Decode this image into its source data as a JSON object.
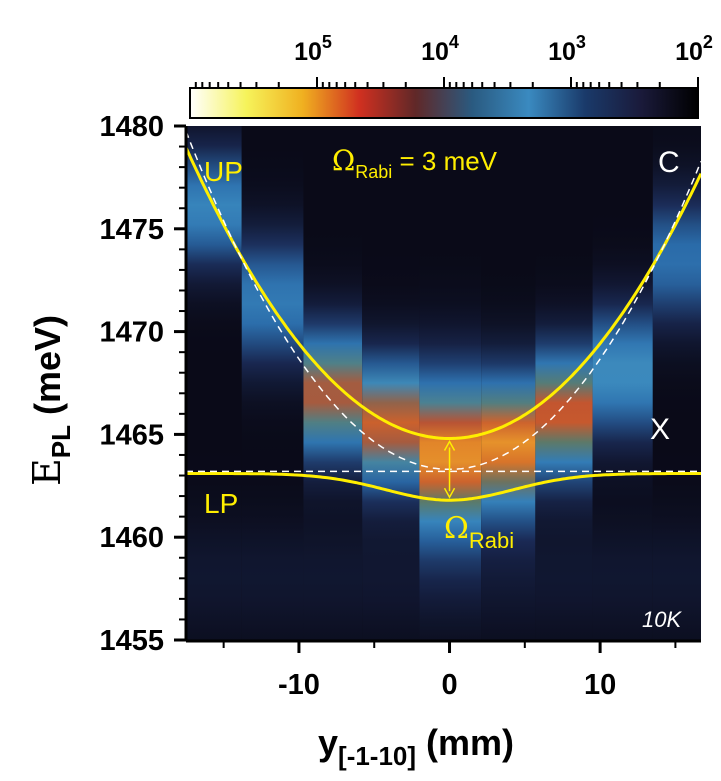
{
  "chart_data": {
    "type": "heatmap",
    "xlabel_main": "y",
    "xlabel_sub": "[-1-10]",
    "xlabel_unit": " (mm)",
    "ylabel_main": "E",
    "ylabel_sub": "PL",
    "ylabel_unit": " (meV)",
    "xlim": [
      -17.5,
      16.7
    ],
    "ylim": [
      1455,
      1480
    ],
    "xticks": [
      -10,
      0,
      10
    ],
    "yticks": [
      1455,
      1460,
      1465,
      1470,
      1475,
      1480
    ],
    "colorbar": {
      "scale": "log",
      "ticks": [
        {
          "base": "10",
          "exp": "5",
          "value": 100000
        },
        {
          "base": "10",
          "exp": "4",
          "value": 10000
        },
        {
          "base": "10",
          "exp": "3",
          "value": 1000
        },
        {
          "base": "10",
          "exp": "2",
          "value": 100
        }
      ],
      "range": [
        1000000,
        100
      ],
      "colors": [
        "#ffffff",
        "#f6f35a",
        "#f0b020",
        "#d03020",
        "#602828",
        "#2a5a80",
        "#3a8ac0",
        "#1a3a6a",
        "#1a1a3a",
        "#000000"
      ]
    },
    "columns": [
      {
        "x": [
          -17.5,
          -13.8
        ],
        "peak": 1476.0,
        "width": 2.0,
        "amp": 0.55
      },
      {
        "x": [
          -13.8,
          -9.7
        ],
        "peak": 1471.5,
        "width": 2.2,
        "amp": 0.5
      },
      {
        "x": [
          -9.7,
          -5.8
        ],
        "peak": 1467.0,
        "width": 2.2,
        "amp": 0.85
      },
      {
        "x": [
          -5.8,
          -2.0
        ],
        "peak": 1465.5,
        "width": 2.2,
        "amp": 0.9
      },
      {
        "x": [
          -2.0,
          2.1
        ],
        "peak": 1464.0,
        "width": 2.8,
        "amp": 1.0
      },
      {
        "x": [
          2.1,
          5.7
        ],
        "peak": 1464.5,
        "width": 2.4,
        "amp": 1.0
      },
      {
        "x": [
          5.7,
          9.5
        ],
        "peak": 1466.0,
        "width": 2.2,
        "amp": 0.9
      },
      {
        "x": [
          9.5,
          13.5
        ],
        "peak": 1468.0,
        "width": 2.2,
        "amp": 0.6
      },
      {
        "x": [
          13.5,
          16.7
        ],
        "peak": 1473.5,
        "width": 2.2,
        "amp": 0.45
      }
    ],
    "series": [
      {
        "style": "solid-yellow",
        "x_center": 0.0,
        "E0": 1464.8,
        "curvature": 0.0462
      },
      {
        "style": "solid-yellow-lp",
        "x_center": 0.0,
        "E_min": 1461.8,
        "E_asym": 1463.1,
        "width": 6.0
      },
      {
        "style": "dashed-white",
        "x_center": 0.0,
        "E0": 1463.3,
        "curvature": 0.0537
      },
      {
        "style": "dashed-white-flat",
        "E": 1463.2
      }
    ],
    "annotations": {
      "up": "UP",
      "lp": "LP",
      "c": "C",
      "x": "X",
      "temp": "10K",
      "rabi_eq_symbol": "Ω",
      "rabi_eq_sub": "Rabi",
      "rabi_eq_rest": " = 3 meV",
      "rabi_symbol": "Ω",
      "rabi_sub": "Rabi"
    },
    "rabi_arrow": {
      "x": 0.0,
      "E_top": 1464.8,
      "E_bottom": 1461.8
    }
  }
}
